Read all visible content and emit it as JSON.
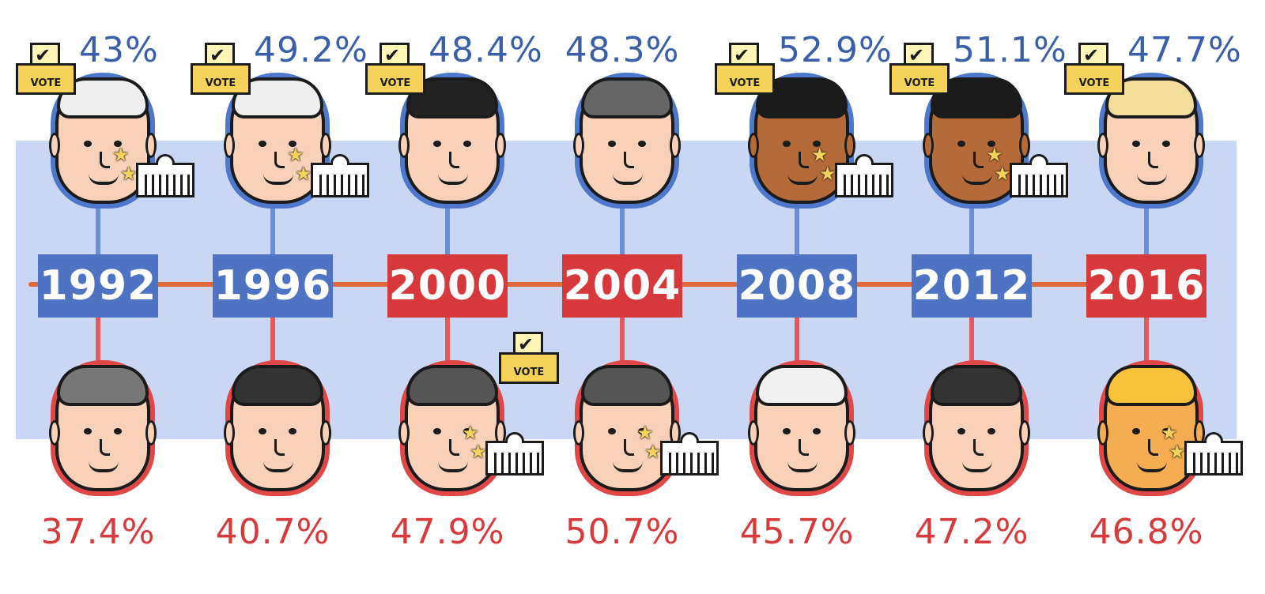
{
  "colors": {
    "democrat": "#4e73c2",
    "republican": "#d6383b",
    "band": "#c9d7f5",
    "timeline": "#e0683a",
    "skin": "#f8d1b8",
    "skin_dark": "#b56a3a",
    "skin_orange": "#f6ad52"
  },
  "chart_data": {
    "type": "table",
    "title": "",
    "elections": [
      {
        "year": "1992",
        "winner_party": "democrat",
        "dem": {
          "pct": "43%",
          "winner": true,
          "icon": "ballot-box-icon",
          "hair": "#eeeeee",
          "skin": "#f8d1b8"
        },
        "rep": {
          "pct": "37.4%",
          "winner": false,
          "hair": "#777777",
          "skin": "#f8d1b8"
        }
      },
      {
        "year": "1996",
        "winner_party": "democrat",
        "dem": {
          "pct": "49.2%",
          "winner": true,
          "icon": "ballot-box-icon",
          "hair": "#eeeeee",
          "skin": "#f8d1b8"
        },
        "rep": {
          "pct": "40.7%",
          "winner": false,
          "hair": "#333333",
          "skin": "#f8d1b8"
        }
      },
      {
        "year": "2000",
        "winner_party": "republican",
        "dem": {
          "pct": "48.4%",
          "winner": false,
          "icon": "ballot-box-icon",
          "hair": "#222222",
          "skin": "#f8d1b8"
        },
        "rep": {
          "pct": "47.9%",
          "winner": true,
          "hair": "#555555",
          "skin": "#f8d1b8"
        }
      },
      {
        "year": "2004",
        "winner_party": "republican",
        "dem": {
          "pct": "48.3%",
          "winner": false,
          "hair": "#666666",
          "skin": "#f8d1b8"
        },
        "rep": {
          "pct": "50.7%",
          "winner": true,
          "icon": "ballot-box-icon",
          "hair": "#555555",
          "skin": "#f8d1b8"
        }
      },
      {
        "year": "2008",
        "winner_party": "democrat",
        "dem": {
          "pct": "52.9%",
          "winner": true,
          "icon": "ballot-box-icon",
          "hair": "#1b1b1b",
          "skin": "#b56a3a"
        },
        "rep": {
          "pct": "45.7%",
          "winner": false,
          "hair": "#f0f0f0",
          "skin": "#f8d1b8"
        }
      },
      {
        "year": "2012",
        "winner_party": "democrat",
        "dem": {
          "pct": "51.1%",
          "winner": true,
          "icon": "ballot-box-icon",
          "hair": "#1b1b1b",
          "skin": "#b56a3a"
        },
        "rep": {
          "pct": "47.2%",
          "winner": false,
          "hair": "#333333",
          "skin": "#f8d1b8"
        }
      },
      {
        "year": "2016",
        "winner_party": "republican",
        "dem": {
          "pct": "47.7%",
          "winner": false,
          "icon": "ballot-box-icon",
          "hair": "#f3dd9a",
          "skin": "#f8d1b8"
        },
        "rep": {
          "pct": "46.8%",
          "winner": true,
          "hair": "#f5c23a",
          "skin": "#f6ad52"
        }
      }
    ]
  },
  "vote_label": "VOTE"
}
